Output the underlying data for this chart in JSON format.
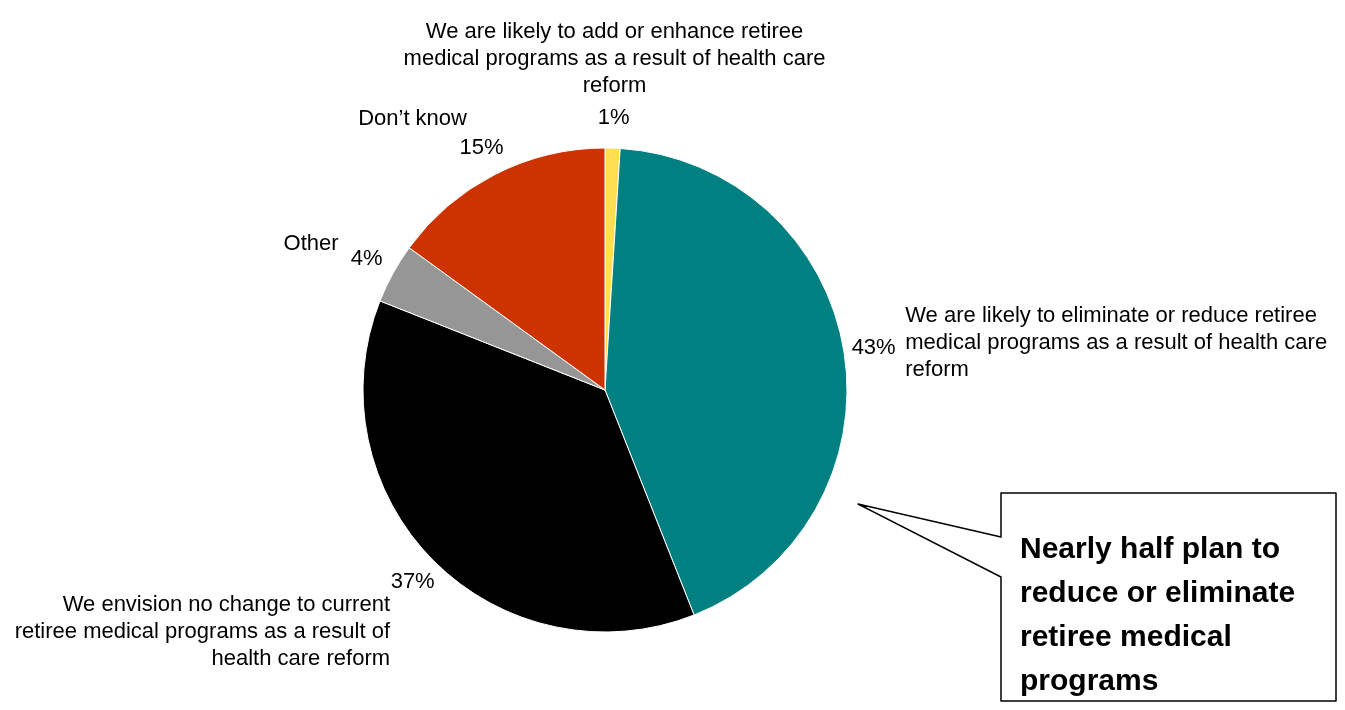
{
  "chart_data": {
    "type": "pie",
    "categories": [
      "We are likely to add or enhance retiree medical programs as a result of health care reform",
      "We are likely to eliminate or reduce retiree medical programs as a result of health care reform",
      "We envision no change to current retiree medical programs as a result of health care reform",
      "Other",
      "Don’t know"
    ],
    "values": [
      1,
      43,
      37,
      4,
      15
    ],
    "value_labels": [
      "1%",
      "43%",
      "37%",
      "4%",
      "15%"
    ],
    "colors": [
      "#ffdf4f",
      "#008080",
      "#000000",
      "#969696",
      "#cc3300"
    ],
    "legend": false,
    "annotations": [
      "Nearly half plan to reduce or eliminate retiree medical programs"
    ]
  }
}
